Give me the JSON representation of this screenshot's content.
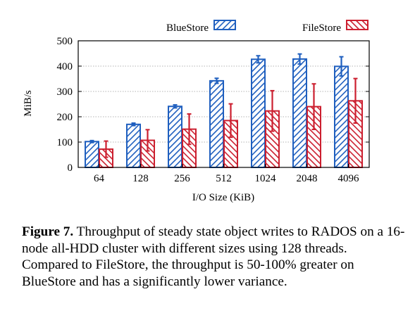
{
  "chart_data": {
    "type": "bar",
    "title": "",
    "xlabel": "I/O Size (KiB)",
    "ylabel": "MiB/s",
    "categories": [
      "64",
      "128",
      "256",
      "512",
      "1024",
      "2048",
      "4096"
    ],
    "ylim": [
      0,
      500
    ],
    "yticks": [
      0,
      100,
      200,
      300,
      400,
      500
    ],
    "grid": "horizontal-dotted",
    "legend_position": "top",
    "series": [
      {
        "name": "BlueStore",
        "color": "#1f5fbf",
        "hatch": "diagonal",
        "values": [
          102,
          170,
          241,
          342,
          427,
          428,
          399
        ],
        "error": [
          4,
          5,
          6,
          10,
          14,
          20,
          38
        ]
      },
      {
        "name": "FileStore",
        "color": "#cc1f2f",
        "hatch": "diagonal",
        "values": [
          72,
          107,
          151,
          185,
          223,
          240,
          263
        ],
        "error": [
          32,
          42,
          60,
          66,
          80,
          90,
          88
        ]
      }
    ]
  },
  "caption": {
    "label": "Figure 7.",
    "text": "Throughput of steady state object writes to RADOS on a 16-node all-HDD cluster with different sizes using 128 threads. Compared to FileStore, the throughput is 50-100% greater on BlueStore and has a significantly lower variance."
  }
}
